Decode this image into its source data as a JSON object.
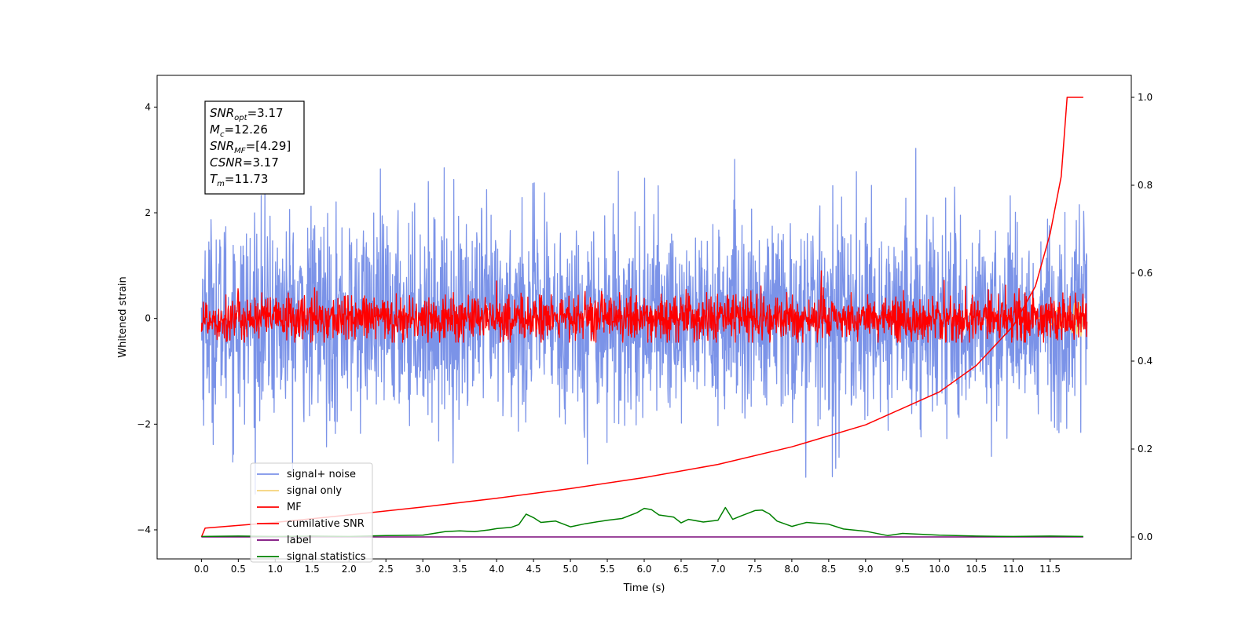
{
  "chart_data": {
    "type": "line",
    "title": "",
    "xlabel": "Time (s)",
    "ylabel": "Whitened strain",
    "xlim": [
      -0.6,
      12.6
    ],
    "ylim": [
      -4.55,
      4.6
    ],
    "y2lim": [
      -0.05,
      1.05
    ],
    "grid": false,
    "legend_position": "lower-left",
    "x_ticks": [
      "0.0",
      "0.5",
      "1.0",
      "1.5",
      "2.0",
      "2.5",
      "3.0",
      "3.5",
      "4.0",
      "4.5",
      "5.0",
      "5.5",
      "6.0",
      "6.5",
      "7.0",
      "7.5",
      "8.0",
      "8.5",
      "9.0",
      "9.5",
      "10.0",
      "10.5",
      "11.0",
      "11.5"
    ],
    "y_ticks": [
      "−4",
      "−2",
      "0",
      "2",
      "4"
    ],
    "y2_ticks": [
      "0.0",
      "0.2",
      "0.4",
      "0.6",
      "0.8",
      "1.0"
    ],
    "annotation_lines": [
      {
        "sym": "SNR",
        "sub": "opt",
        "rest": "=3.17"
      },
      {
        "sym": "M",
        "sub": "c",
        "rest": "=12.26"
      },
      {
        "sym": "SNR",
        "sub": "MF",
        "rest": "=[4.29]"
      },
      {
        "sym": "CSNR",
        "sub": "",
        "rest": "=3.17"
      },
      {
        "sym": "T",
        "sub": "m",
        "rest": "=11.73"
      }
    ],
    "series": [
      {
        "name": "signal+ noise",
        "color": "#7b93e8",
        "axis": "left",
        "kind": "noise",
        "x_range": [
          0.0,
          12.0
        ],
        "mean": 0.0,
        "std": 0.95,
        "approx_extremes": [
          -3.8,
          4.15
        ]
      },
      {
        "name": "signal only",
        "color": "#f5d27a",
        "axis": "left",
        "kind": "chirp",
        "x_range": [
          11.3,
          11.95
        ],
        "amplitude": 0.35
      },
      {
        "name": "MF",
        "color": "#ff0000",
        "axis": "left",
        "kind": "noise",
        "x_range": [
          0.0,
          12.0
        ],
        "mean": 0.0,
        "std": 0.22,
        "approx_extremes": [
          -0.45,
          0.95
        ]
      },
      {
        "name": "cumilative SNR",
        "color": "#ff0000",
        "axis": "right",
        "x": [
          0.0,
          0.05,
          1.0,
          2.0,
          3.0,
          4.0,
          5.0,
          6.0,
          7.0,
          8.0,
          9.0,
          10.0,
          10.5,
          11.0,
          11.3,
          11.5,
          11.65,
          11.73,
          11.95
        ],
        "y": [
          0.0,
          0.02,
          0.033,
          0.05,
          0.068,
          0.088,
          0.11,
          0.135,
          0.165,
          0.205,
          0.255,
          0.33,
          0.39,
          0.48,
          0.57,
          0.69,
          0.82,
          1.0,
          1.0
        ]
      },
      {
        "name": "label",
        "color": "#7a0a7a",
        "axis": "right",
        "x": [
          0.0,
          11.95
        ],
        "y": [
          0.0,
          0.0
        ]
      },
      {
        "name": "signal statistics",
        "color": "#008000",
        "axis": "right",
        "x": [
          0.0,
          0.5,
          1.0,
          1.5,
          2.0,
          2.5,
          3.0,
          3.3,
          3.5,
          3.7,
          3.9,
          4.0,
          4.2,
          4.3,
          4.4,
          4.5,
          4.6,
          4.8,
          5.0,
          5.2,
          5.5,
          5.7,
          5.9,
          6.0,
          6.1,
          6.2,
          6.4,
          6.5,
          6.6,
          6.8,
          7.0,
          7.1,
          7.2,
          7.3,
          7.5,
          7.6,
          7.7,
          7.8,
          8.0,
          8.2,
          8.5,
          8.7,
          9.0,
          9.3,
          9.5,
          10.0,
          10.5,
          11.0,
          11.5,
          11.95
        ],
        "y": [
          0.001,
          0.002,
          0.001,
          0.002,
          0.001,
          0.003,
          0.004,
          0.012,
          0.014,
          0.012,
          0.016,
          0.019,
          0.022,
          0.028,
          0.052,
          0.044,
          0.033,
          0.036,
          0.023,
          0.03,
          0.038,
          0.042,
          0.055,
          0.065,
          0.062,
          0.05,
          0.045,
          0.032,
          0.04,
          0.034,
          0.038,
          0.067,
          0.04,
          0.047,
          0.06,
          0.061,
          0.052,
          0.036,
          0.024,
          0.033,
          0.029,
          0.018,
          0.013,
          0.003,
          0.008,
          0.004,
          0.002,
          0.001,
          0.002,
          0.001
        ]
      }
    ]
  }
}
